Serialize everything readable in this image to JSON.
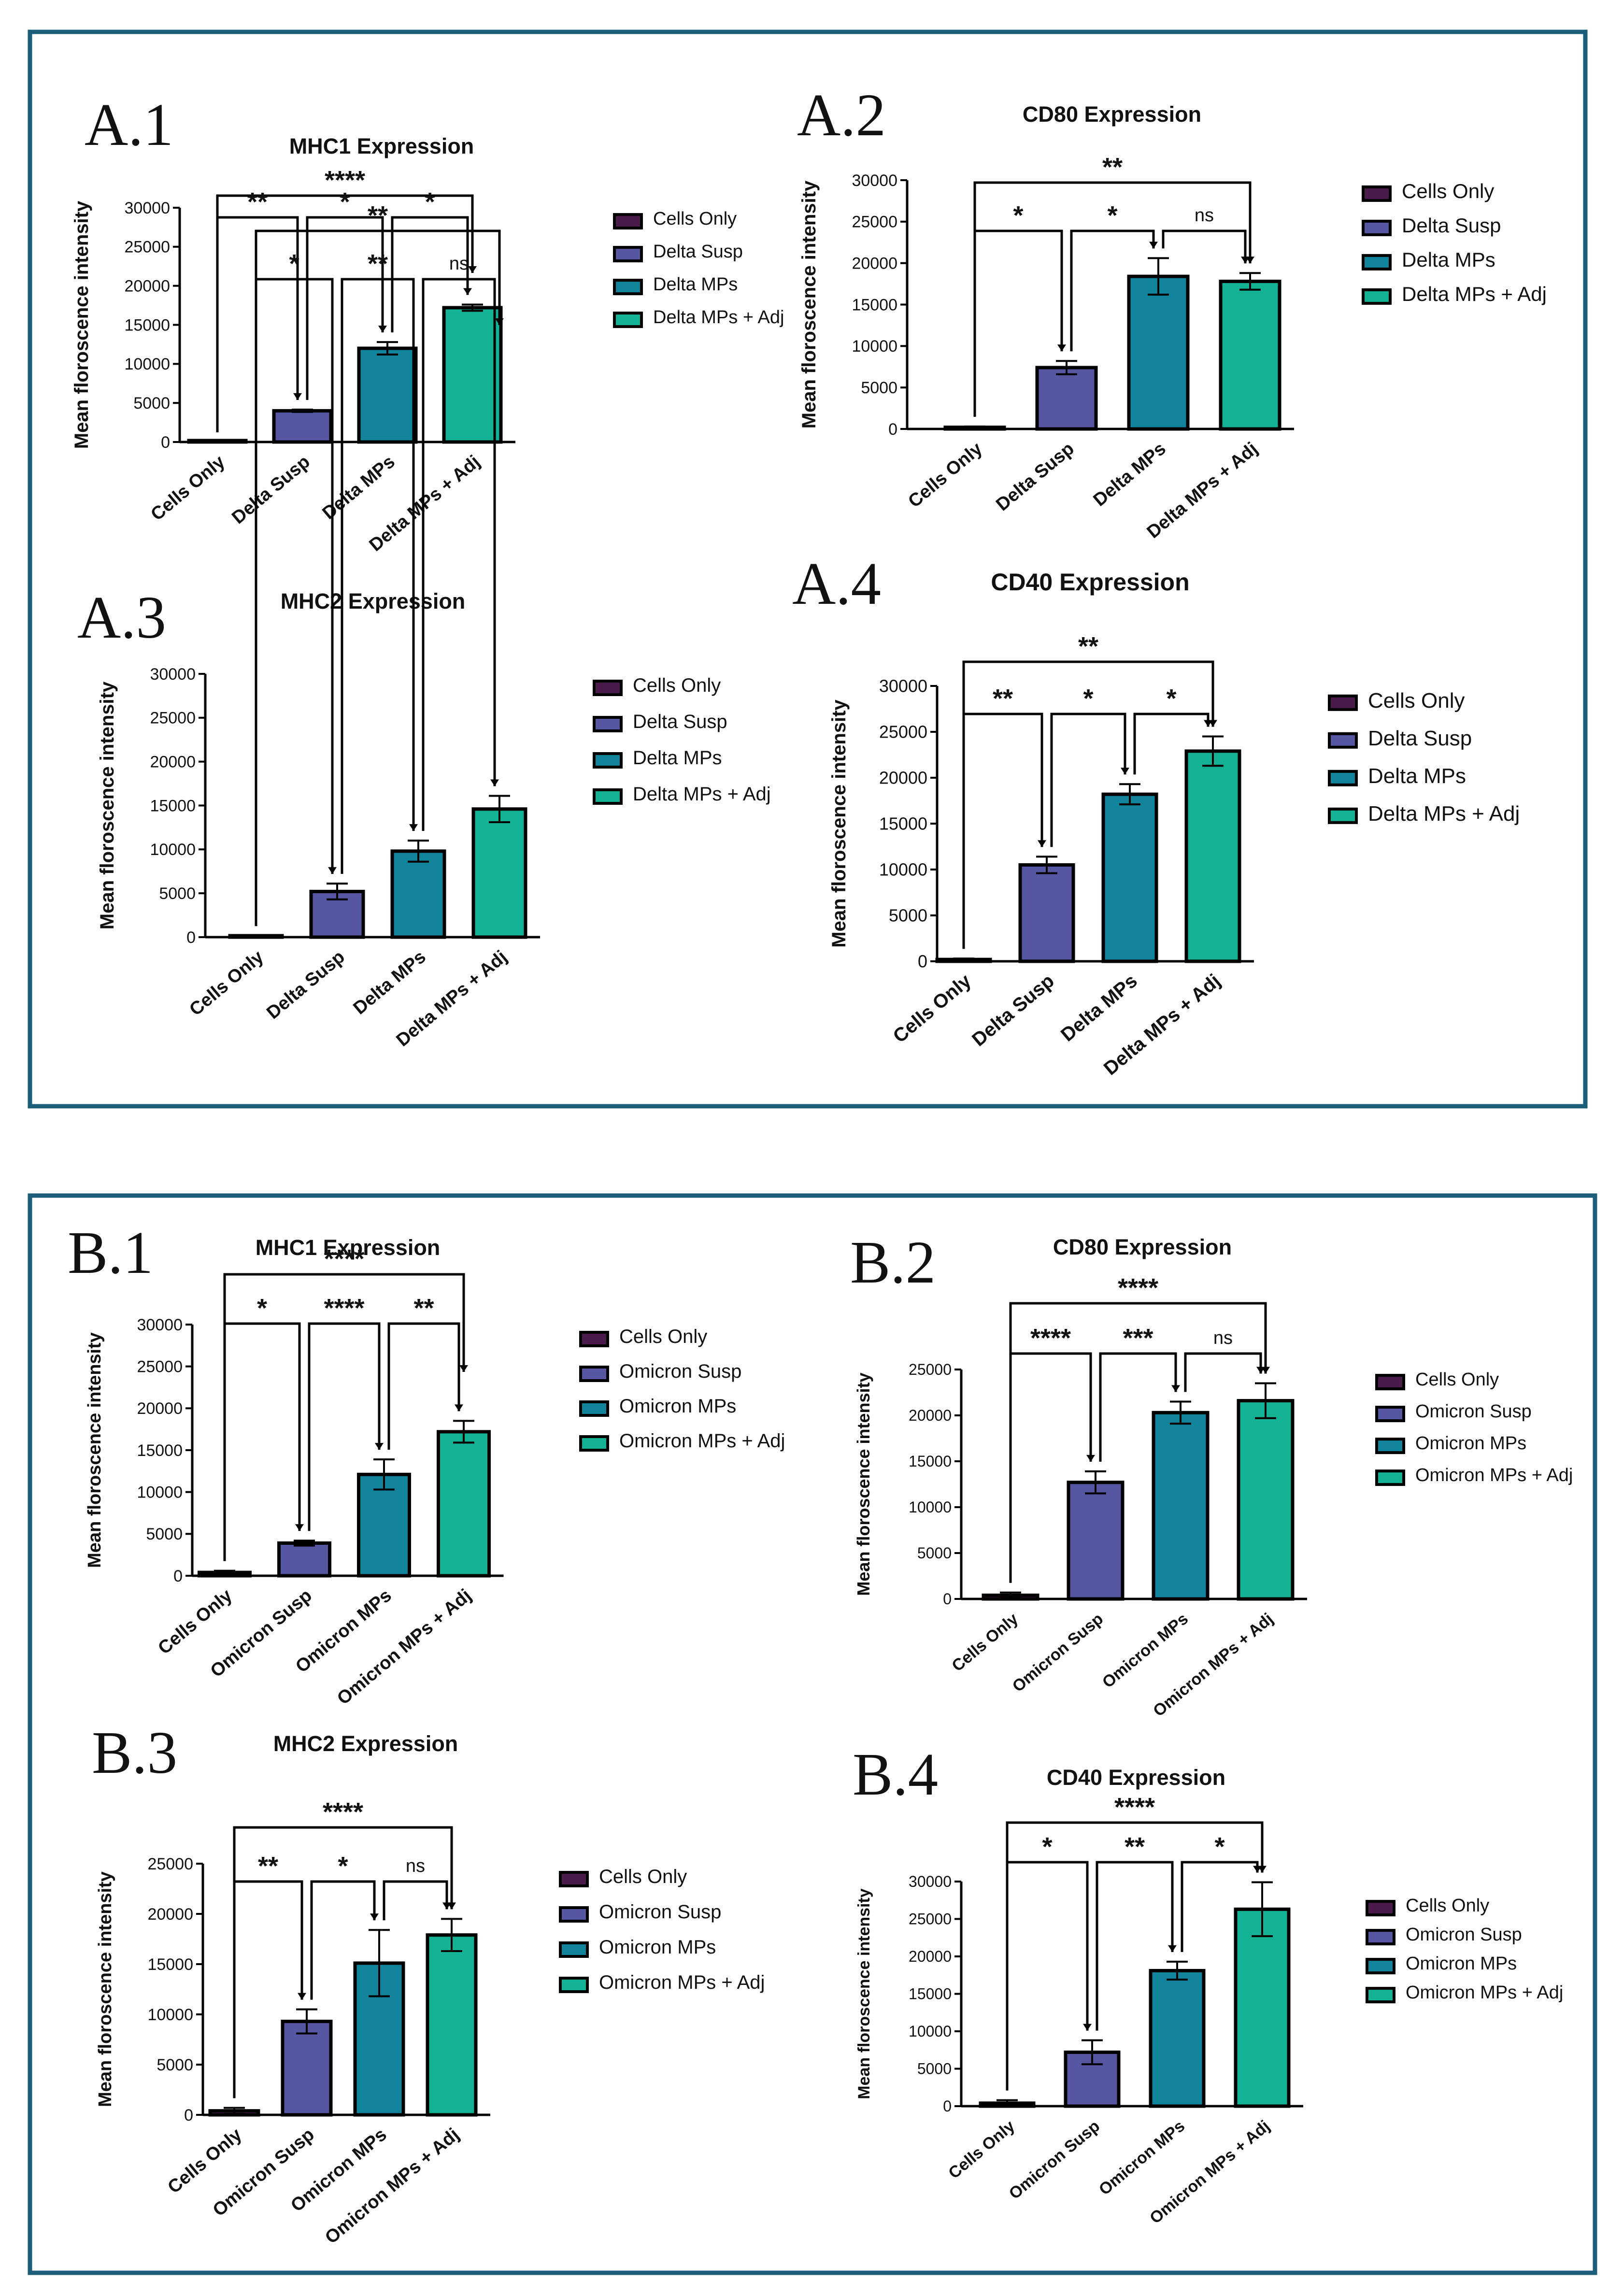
{
  "figure": {
    "colors": {
      "cells": "#4a1a4a",
      "susp": "#5656a2",
      "mps": "#11839b",
      "adj": "#14b294",
      "frame": "#1c5d7a"
    }
  },
  "chart_data": [
    {
      "id": "A1",
      "panel": "A.1",
      "type": "bar",
      "title": "MHC1 Expression",
      "ylabel": "Mean floroscence intensity",
      "ylim": [
        0,
        30000
      ],
      "yticks": [
        "0",
        "5000",
        "10000",
        "15000",
        "20000",
        "25000",
        "30000"
      ],
      "categories": [
        "Cells Only",
        "Delta Susp",
        "Delta MPs",
        "Delta MPs + Adj"
      ],
      "values": [
        0,
        4000,
        12000,
        17200
      ],
      "errors": [
        0,
        150,
        800,
        400
      ],
      "legend": [
        "Cells Only",
        "Delta Susp",
        "Delta MPs",
        "Delta MPs + Adj"
      ],
      "sig": [
        {
          "from": 0,
          "to": 3,
          "label": "****"
        },
        {
          "from": 0,
          "to": 1,
          "label": "**"
        },
        {
          "from": 1,
          "to": 2,
          "label": "*"
        },
        {
          "from": 2,
          "to": 3,
          "label": "*"
        }
      ]
    },
    {
      "id": "A2",
      "panel": "A.2",
      "type": "bar",
      "title": "CD80 Expression",
      "ylabel": "Mean floroscence intensity",
      "ylim": [
        0,
        30000
      ],
      "yticks": [
        "0",
        "5000",
        "10000",
        "15000",
        "20000",
        "25000",
        "30000"
      ],
      "categories": [
        "Cells Only",
        "Delta Susp",
        "Delta MPs",
        "Delta MPs + Adj"
      ],
      "values": [
        200,
        7400,
        18400,
        17800
      ],
      "errors": [
        100,
        800,
        2200,
        1000
      ],
      "legend": [
        "Cells Only",
        "Delta Susp",
        "Delta MPs",
        "Delta MPs + Adj"
      ],
      "sig": [
        {
          "from": 0,
          "to": 3,
          "label": "**"
        },
        {
          "from": 0,
          "to": 1,
          "label": "*"
        },
        {
          "from": 1,
          "to": 2,
          "label": "*"
        },
        {
          "from": 2,
          "to": 3,
          "label": "ns"
        }
      ]
    },
    {
      "id": "A3",
      "panel": "A.3",
      "type": "bar",
      "title": "MHC2 Expression",
      "ylabel": "Mean floroscence intensity",
      "ylim": [
        0,
        30000
      ],
      "yticks": [
        "0",
        "5000",
        "10000",
        "15000",
        "20000",
        "25000",
        "30000"
      ],
      "categories": [
        "Cells Only",
        "Delta Susp",
        "Delta MPs",
        "Delta MPs + Adj"
      ],
      "values": [
        100,
        5200,
        9800,
        14600
      ],
      "errors": [
        50,
        900,
        1200,
        1500
      ],
      "legend": [
        "Cells Only",
        "Delta Susp",
        "Delta MPs",
        "Delta MPs + Adj"
      ],
      "sig": [
        {
          "from": 0,
          "to": 3,
          "label": "**"
        },
        {
          "from": 0,
          "to": 1,
          "label": "*"
        },
        {
          "from": 1,
          "to": 2,
          "label": "**"
        },
        {
          "from": 2,
          "to": 3,
          "label": "ns"
        }
      ]
    },
    {
      "id": "A4",
      "panel": "A.4",
      "type": "bar",
      "title": "CD40 Expression",
      "ylabel": "Mean floroscence intensity",
      "ylim": [
        0,
        30000
      ],
      "yticks": [
        "0",
        "5000",
        "10000",
        "15000",
        "20000",
        "25000",
        "30000"
      ],
      "categories": [
        "Cells Only",
        "Delta Susp",
        "Delta MPs",
        "Delta MPs + Adj"
      ],
      "values": [
        200,
        10500,
        18200,
        22900
      ],
      "errors": [
        100,
        900,
        1100,
        1600
      ],
      "legend": [
        "Cells Only",
        "Delta Susp",
        "Delta MPs",
        "Delta MPs + Adj"
      ],
      "sig": [
        {
          "from": 0,
          "to": 3,
          "label": "**"
        },
        {
          "from": 0,
          "to": 1,
          "label": "**"
        },
        {
          "from": 1,
          "to": 2,
          "label": "*"
        },
        {
          "from": 2,
          "to": 3,
          "label": "*"
        }
      ]
    },
    {
      "id": "B1",
      "panel": "B.1",
      "type": "bar",
      "title": "MHC1 Expression",
      "ylabel": "Mean floroscence intensity",
      "ylim": [
        0,
        30000
      ],
      "yticks": [
        "0",
        "5000",
        "10000",
        "15000",
        "20000",
        "25000",
        "30000"
      ],
      "categories": [
        "Cells Only",
        "Omicron Susp",
        "Omicron MPs",
        "Omicron MPs + Adj"
      ],
      "values": [
        400,
        3900,
        12100,
        17200
      ],
      "errors": [
        200,
        300,
        1800,
        1300
      ],
      "legend": [
        "Cells Only",
        "Omicron Susp",
        "Omicron MPs",
        "Omicron MPs + Adj"
      ],
      "sig": [
        {
          "from": 0,
          "to": 3,
          "label": "****"
        },
        {
          "from": 0,
          "to": 1,
          "label": "*"
        },
        {
          "from": 1,
          "to": 2,
          "label": "****"
        },
        {
          "from": 2,
          "to": 3,
          "label": "**"
        }
      ]
    },
    {
      "id": "B2",
      "panel": "B.2",
      "type": "bar",
      "title": "CD80 Expression",
      "ylabel": "Mean floroscence intensity",
      "ylim": [
        0,
        25000
      ],
      "yticks": [
        "0",
        "5000",
        "10000",
        "15000",
        "20000",
        "25000"
      ],
      "categories": [
        "Cells Only",
        "Omicron Susp",
        "Omicron MPs",
        "Omicron MPs + Adj"
      ],
      "values": [
        400,
        12700,
        20300,
        21600
      ],
      "errors": [
        300,
        1200,
        1200,
        1900
      ],
      "legend": [
        "Cells Only",
        "Omicron Susp",
        "Omicron MPs",
        "Omicron MPs + Adj"
      ],
      "sig": [
        {
          "from": 0,
          "to": 3,
          "label": "****"
        },
        {
          "from": 0,
          "to": 1,
          "label": "****"
        },
        {
          "from": 1,
          "to": 2,
          "label": "***"
        },
        {
          "from": 2,
          "to": 3,
          "label": "ns"
        }
      ]
    },
    {
      "id": "B3",
      "panel": "B.3",
      "type": "bar",
      "title": "MHC2 Expression",
      "ylabel": "Mean floroscence intensity",
      "ylim": [
        0,
        25000
      ],
      "yticks": [
        "0",
        "5000",
        "10000",
        "15000",
        "20000",
        "25000"
      ],
      "categories": [
        "Cells Only",
        "Omicron Susp",
        "Omicron MPs",
        "Omicron MPs + Adj"
      ],
      "values": [
        400,
        9300,
        15100,
        17900
      ],
      "errors": [
        300,
        1200,
        3300,
        1600
      ],
      "legend": [
        "Cells Only",
        "Omicron Susp",
        "Omicron MPs",
        "Omicron MPs + Adj"
      ],
      "sig": [
        {
          "from": 0,
          "to": 3,
          "label": "****"
        },
        {
          "from": 0,
          "to": 1,
          "label": "**"
        },
        {
          "from": 1,
          "to": 2,
          "label": "*"
        },
        {
          "from": 2,
          "to": 3,
          "label": "ns"
        }
      ]
    },
    {
      "id": "B4",
      "panel": "B.4",
      "type": "bar",
      "title": "CD40 Expression",
      "ylabel": "Mean floroscence intensity",
      "ylim": [
        0,
        30000
      ],
      "yticks": [
        "0",
        "5000",
        "10000",
        "15000",
        "20000",
        "25000",
        "30000"
      ],
      "categories": [
        "Cells Only",
        "Omicron Susp",
        "Omicron MPs",
        "Omicron MPs + Adj"
      ],
      "values": [
        400,
        7200,
        18100,
        26300
      ],
      "errors": [
        400,
        1600,
        1200,
        3600
      ],
      "legend": [
        "Cells Only",
        "Omicron Susp",
        "Omicron MPs",
        "Omicron MPs + Adj"
      ],
      "sig": [
        {
          "from": 0,
          "to": 3,
          "label": "****"
        },
        {
          "from": 0,
          "to": 1,
          "label": "*"
        },
        {
          "from": 1,
          "to": 2,
          "label": "**"
        },
        {
          "from": 2,
          "to": 3,
          "label": "*"
        }
      ]
    }
  ]
}
